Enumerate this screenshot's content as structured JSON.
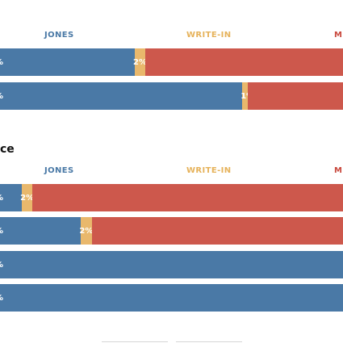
{
  "colors": {
    "jones": "#4a79a6",
    "write_in": "#e9b86c",
    "other": "#cd584c",
    "jones_label": "#4a79a6",
    "write_in_label": "#e6b25a",
    "other_label": "#c9493e"
  },
  "top_panel": {
    "header_labels": {
      "jones": "JONES",
      "write_in": "WRITE-IN",
      "other": "M"
    }
  },
  "bottom_panel": {
    "title": "ce",
    "header_labels": {
      "jones": "JONES",
      "write_in": "WRITE-IN",
      "other": "M"
    }
  },
  "chart_data": [
    {
      "type": "bar",
      "stacked": true,
      "orientation": "horizontal",
      "categories": [
        "",
        ""
      ],
      "series": [
        {
          "name": "JONES",
          "values": [
            50,
            70
          ],
          "labels": [
            "%",
            "%"
          ]
        },
        {
          "name": "WRITE-IN",
          "values": [
            2,
            1
          ],
          "labels": [
            "2%",
            "1%"
          ]
        },
        {
          "name": "M",
          "values": [
            48,
            29
          ],
          "labels": [
            "",
            ""
          ]
        }
      ],
      "xlim": [
        0,
        100
      ]
    },
    {
      "type": "bar",
      "stacked": true,
      "orientation": "horizontal",
      "categories": [
        "",
        "",
        "",
        ""
      ],
      "series": [
        {
          "name": "JONES",
          "values": [
            29,
            40,
            100,
            100
          ],
          "labels": [
            "%",
            "%",
            "%",
            "%"
          ]
        },
        {
          "name": "WRITE-IN",
          "values": [
            2,
            2,
            0,
            0
          ],
          "labels": [
            "2%",
            "2%",
            "",
            ""
          ]
        },
        {
          "name": "M",
          "values": [
            69,
            58,
            0,
            0
          ],
          "labels": [
            "",
            "",
            "",
            ""
          ]
        }
      ],
      "xlim": [
        0,
        100
      ]
    }
  ]
}
